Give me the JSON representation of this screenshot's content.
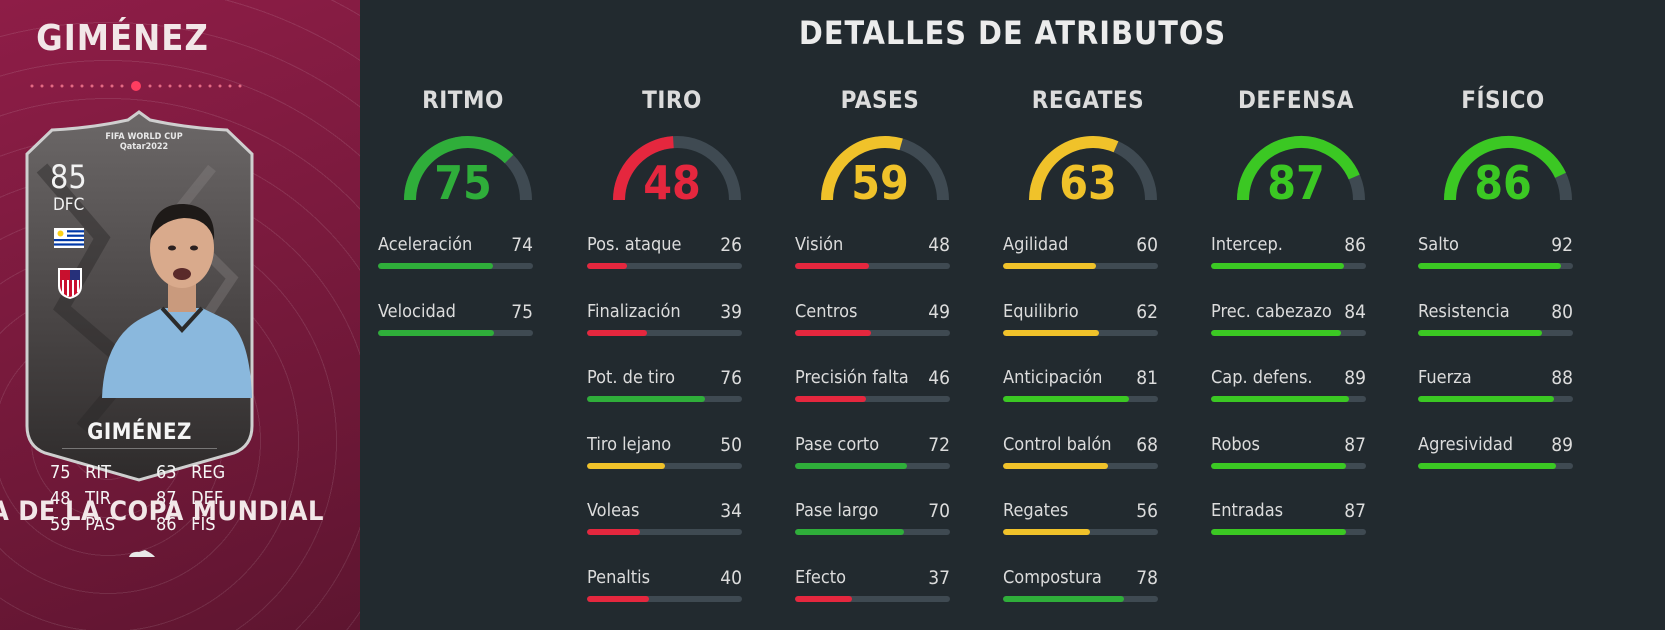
{
  "card": {
    "name": "GIMÉNEZ",
    "card_name": "GIMÉNEZ",
    "tournament": "FIFA WORLD CUP Qatar2022",
    "rating": "85",
    "position": "DFC",
    "promo": "A DE LA COPA MUNDIAL",
    "stats_left": [
      {
        "value": "75",
        "label": "RIT"
      },
      {
        "value": "48",
        "label": "TIR"
      },
      {
        "value": "59",
        "label": "PAS"
      }
    ],
    "stats_right": [
      {
        "value": "63",
        "label": "REG"
      },
      {
        "value": "87",
        "label": "DEF"
      },
      {
        "value": "86",
        "label": "FÍS"
      }
    ]
  },
  "colors": {
    "red": "#e5273e",
    "yellow": "#f0c22a",
    "green": "#2fae3a",
    "bright_green": "#3bc823",
    "track": "#3f4a52"
  },
  "title": "DETALLES DE ATRIBUTOS",
  "categories": [
    {
      "name": "RITMO",
      "value": 75,
      "color": "#2fae3a",
      "attributes": [
        {
          "name": "Aceleración",
          "value": 74
        },
        {
          "name": "Velocidad",
          "value": 75
        }
      ]
    },
    {
      "name": "TIRO",
      "value": 48,
      "color": "#e5273e",
      "attributes": [
        {
          "name": "Pos. ataque",
          "value": 26
        },
        {
          "name": "Finalización",
          "value": 39
        },
        {
          "name": "Pot. de tiro",
          "value": 76
        },
        {
          "name": "Tiro lejano",
          "value": 50
        },
        {
          "name": "Voleas",
          "value": 34
        },
        {
          "name": "Penaltis",
          "value": 40
        }
      ]
    },
    {
      "name": "PASES",
      "value": 59,
      "color": "#f0c22a",
      "attributes": [
        {
          "name": "Visión",
          "value": 48
        },
        {
          "name": "Centros",
          "value": 49
        },
        {
          "name": "Precisión falta",
          "value": 46
        },
        {
          "name": "Pase corto",
          "value": 72
        },
        {
          "name": "Pase largo",
          "value": 70
        },
        {
          "name": "Efecto",
          "value": 37
        }
      ]
    },
    {
      "name": "REGATES",
      "value": 63,
      "color": "#f0c22a",
      "attributes": [
        {
          "name": "Agilidad",
          "value": 60
        },
        {
          "name": "Equilibrio",
          "value": 62
        },
        {
          "name": "Anticipación",
          "value": 81
        },
        {
          "name": "Control balón",
          "value": 68
        },
        {
          "name": "Regates",
          "value": 56
        },
        {
          "name": "Compostura",
          "value": 78
        }
      ]
    },
    {
      "name": "DEFENSA",
      "value": 87,
      "color": "#3bc823",
      "attributes": [
        {
          "name": "Intercep.",
          "value": 86
        },
        {
          "name": "Prec. cabezazo",
          "value": 84
        },
        {
          "name": "Cap. defens.",
          "value": 89
        },
        {
          "name": "Robos",
          "value": 87
        },
        {
          "name": "Entradas",
          "value": 87
        }
      ]
    },
    {
      "name": "FÍSICO",
      "value": 86,
      "color": "#3bc823",
      "attributes": [
        {
          "name": "Salto",
          "value": 92
        },
        {
          "name": "Resistencia",
          "value": 80
        },
        {
          "name": "Fuerza",
          "value": 88
        },
        {
          "name": "Agresividad",
          "value": 89
        }
      ]
    }
  ]
}
